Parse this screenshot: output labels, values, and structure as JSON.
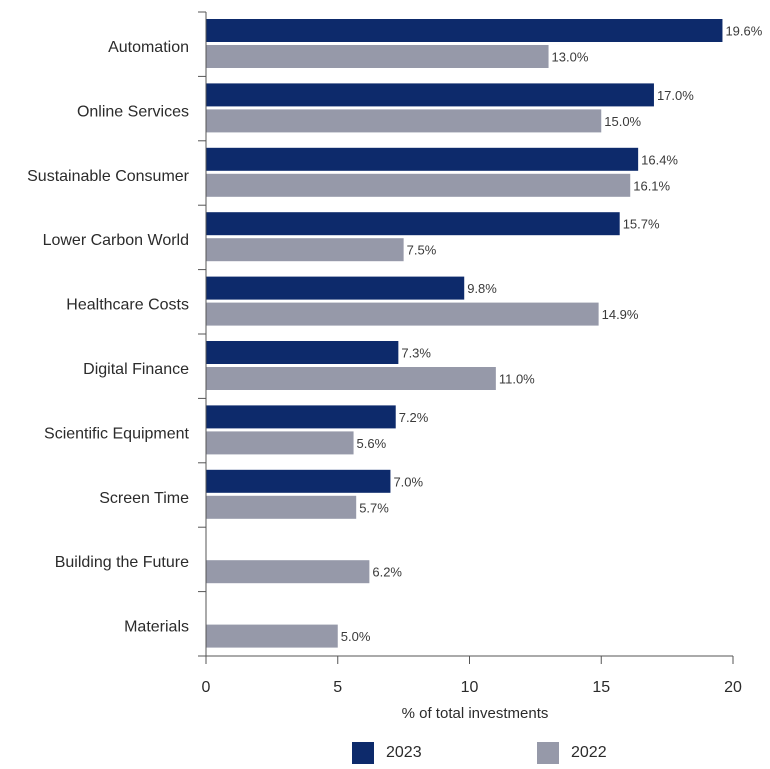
{
  "chart_data": {
    "type": "bar",
    "orientation": "horizontal",
    "categories": [
      "Automation",
      "Online Services",
      "Sustainable Consumer",
      "Lower Carbon World",
      "Healthcare Costs",
      "Digital Finance",
      "Scientific Equipment",
      "Screen Time",
      "Building the Future",
      "Materials"
    ],
    "series": [
      {
        "name": "2023",
        "color": "#0d2a6b",
        "values": [
          19.6,
          17.0,
          16.4,
          15.7,
          9.8,
          7.3,
          7.2,
          7.0,
          null,
          null
        ],
        "labels": [
          "19.6%",
          "17.0%",
          "16.4%",
          "15.7%",
          "9.8%",
          "7.3%",
          "7.2%",
          "7.0%",
          null,
          null
        ]
      },
      {
        "name": "2022",
        "color": "#9699a9",
        "values": [
          13.0,
          15.0,
          16.1,
          7.5,
          14.9,
          11.0,
          5.6,
          5.7,
          6.2,
          5.0
        ],
        "labels": [
          "13.0%",
          "15.0%",
          "16.1%",
          "7.5%",
          "14.9%",
          "11.0%",
          "5.6%",
          "5.7%",
          "6.2%",
          "5.0%"
        ]
      }
    ],
    "xlabel": "% of total investments",
    "xlim": [
      0,
      20
    ],
    "xticks": [
      "0",
      "5",
      "10",
      "15",
      "20"
    ],
    "grid": false,
    "legend_position": "bottom"
  }
}
